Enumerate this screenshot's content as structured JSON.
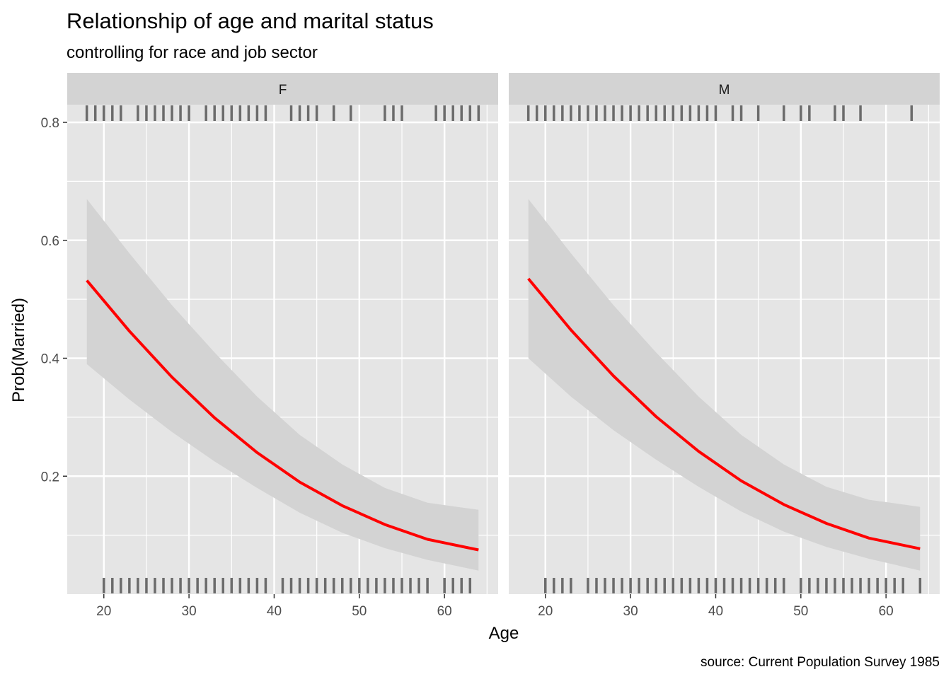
{
  "chart_data": {
    "type": "line",
    "title": "Relationship of age and marital status",
    "subtitle": "controlling for race and job sector",
    "xlabel": "Age",
    "ylabel": "Prob(Married)",
    "caption": "source: Current Population Survey 1985",
    "xlim": [
      15.7,
      66.3
    ],
    "ylim": [
      0.0,
      0.83
    ],
    "x_ticks": [
      20,
      30,
      40,
      50,
      60
    ],
    "x_tick_labels": [
      "20",
      "30",
      "40",
      "50",
      "60"
    ],
    "y_ticks": [
      0.2,
      0.4,
      0.6,
      0.8
    ],
    "y_tick_labels": [
      "0.2",
      "0.4",
      "0.6",
      "0.8"
    ],
    "grid": true,
    "colors": {
      "line": "#ff0000",
      "ribbon": "#d3d3d3",
      "panel_background": "#e5e5e5",
      "strip_background": "#d3d3d3",
      "grid": "#ffffff",
      "rug": "#6b6b6b"
    },
    "panels": [
      {
        "label": "F",
        "x": [
          18,
          23,
          28,
          33,
          38,
          43,
          48,
          53,
          58,
          64
        ],
        "fit": [
          0.532,
          0.446,
          0.368,
          0.299,
          0.24,
          0.19,
          0.15,
          0.118,
          0.093,
          0.075
        ],
        "lower": [
          0.39,
          0.33,
          0.275,
          0.225,
          0.18,
          0.138,
          0.104,
          0.078,
          0.058,
          0.04
        ],
        "upper": [
          0.67,
          0.578,
          0.49,
          0.41,
          0.335,
          0.27,
          0.22,
          0.18,
          0.155,
          0.143
        ],
        "rug_top": [
          18,
          19,
          20,
          21,
          22,
          24,
          25,
          26,
          27,
          28,
          29,
          30,
          32,
          33,
          34,
          35,
          36,
          37,
          38,
          39,
          42,
          43,
          44,
          45,
          47,
          49,
          53,
          54,
          55,
          59,
          60,
          61,
          62,
          63,
          64
        ],
        "rug_bottom": [
          20,
          21,
          22,
          23,
          24,
          25,
          26,
          27,
          28,
          29,
          30,
          31,
          32,
          33,
          34,
          35,
          36,
          37,
          38,
          39,
          41,
          42,
          43,
          44,
          45,
          46,
          47,
          48,
          49,
          50,
          51,
          52,
          53,
          54,
          55,
          56,
          57,
          58,
          60,
          61,
          62,
          63
        ]
      },
      {
        "label": "M",
        "x": [
          18,
          23,
          28,
          33,
          38,
          43,
          48,
          53,
          58,
          64
        ],
        "fit": [
          0.535,
          0.448,
          0.37,
          0.301,
          0.242,
          0.192,
          0.152,
          0.12,
          0.095,
          0.077
        ],
        "lower": [
          0.4,
          0.335,
          0.278,
          0.228,
          0.182,
          0.14,
          0.106,
          0.08,
          0.06,
          0.04
        ],
        "upper": [
          0.67,
          0.578,
          0.49,
          0.41,
          0.335,
          0.27,
          0.22,
          0.182,
          0.16,
          0.148
        ],
        "rug_top": [
          18,
          19,
          20,
          21,
          22,
          23,
          24,
          25,
          26,
          27,
          28,
          29,
          30,
          31,
          32,
          33,
          34,
          35,
          36,
          37,
          38,
          39,
          40,
          42,
          43,
          45,
          48,
          50,
          51,
          54,
          55,
          57,
          63
        ],
        "rug_bottom": [
          20,
          21,
          22,
          23,
          25,
          26,
          27,
          28,
          29,
          30,
          31,
          32,
          33,
          34,
          35,
          36,
          37,
          38,
          39,
          40,
          41,
          42,
          43,
          44,
          45,
          46,
          47,
          48,
          50,
          51,
          52,
          53,
          54,
          55,
          56,
          57,
          58,
          59,
          60,
          61,
          62,
          64
        ]
      }
    ]
  }
}
